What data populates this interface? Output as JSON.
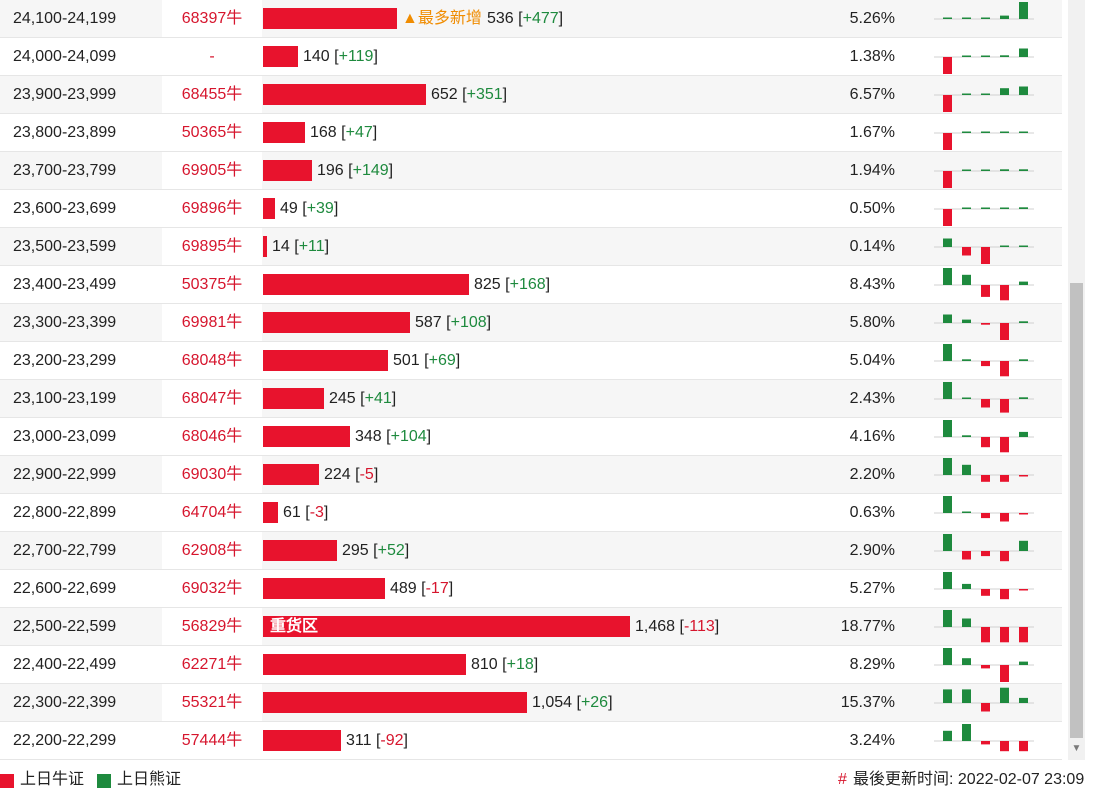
{
  "colors": {
    "bull": "#e8132d",
    "bear": "#1e8a3e",
    "text_red": "#d6152d",
    "highlight": "#f08c00"
  },
  "rows": [
    {
      "range": "24,100-24,199",
      "code": "68397牛",
      "count": "536",
      "delta": "+477",
      "pct": "5.26%",
      "bar_value": 536,
      "tag": "▲最多新增",
      "spark": [
        0,
        0,
        0,
        0.2,
        1
      ]
    },
    {
      "range": "24,000-24,099",
      "code": "-",
      "count": "140",
      "delta": "+119",
      "pct": "1.38%",
      "bar_value": 140,
      "spark": [
        -1,
        0,
        0,
        0.1,
        0.5
      ]
    },
    {
      "range": "23,900-23,999",
      "code": "68455牛",
      "count": "652",
      "delta": "+351",
      "pct": "6.57%",
      "bar_value": 652,
      "spark": [
        -1,
        0,
        0,
        0.4,
        0.5
      ]
    },
    {
      "range": "23,800-23,899",
      "code": "50365牛",
      "count": "168",
      "delta": "+47",
      "pct": "1.67%",
      "bar_value": 168,
      "spark": [
        -1,
        0,
        0,
        0.05,
        0.05
      ]
    },
    {
      "range": "23,700-23,799",
      "code": "69905牛",
      "count": "196",
      "delta": "+149",
      "pct": "1.94%",
      "bar_value": 196,
      "spark": [
        -1,
        0,
        0,
        0.1,
        0.1
      ]
    },
    {
      "range": "23,600-23,699",
      "code": "69896牛",
      "count": "49",
      "delta": "+39",
      "pct": "0.50%",
      "bar_value": 49,
      "spark": [
        -1,
        0,
        0,
        0.05,
        0.1
      ]
    },
    {
      "range": "23,500-23,599",
      "code": "69895牛",
      "count": "14",
      "delta": "+11",
      "pct": "0.14%",
      "bar_value": 14,
      "spark": [
        0.5,
        -0.5,
        -1,
        0.05,
        0.05
      ]
    },
    {
      "range": "23,400-23,499",
      "code": "50375牛",
      "count": "825",
      "delta": "+168",
      "pct": "8.43%",
      "bar_value": 825,
      "spark": [
        1,
        0.6,
        -0.7,
        -0.9,
        0.2
      ]
    },
    {
      "range": "23,300-23,399",
      "code": "69981牛",
      "count": "587",
      "delta": "+108",
      "pct": "5.80%",
      "bar_value": 587,
      "spark": [
        0.5,
        0.2,
        -0.1,
        -1,
        0.1
      ]
    },
    {
      "range": "23,200-23,299",
      "code": "68048牛",
      "count": "501",
      "delta": "+69",
      "pct": "5.04%",
      "bar_value": 501,
      "spark": [
        1,
        0.1,
        -0.3,
        -0.9,
        0.1
      ]
    },
    {
      "range": "23,100-23,199",
      "code": "68047牛",
      "count": "245",
      "delta": "+41",
      "pct": "2.43%",
      "bar_value": 245,
      "spark": [
        1,
        0.05,
        -0.5,
        -0.8,
        0.1
      ]
    },
    {
      "range": "23,000-23,099",
      "code": "68046牛",
      "count": "348",
      "delta": "+104",
      "pct": "4.16%",
      "bar_value": 348,
      "spark": [
        1,
        0.1,
        -0.6,
        -0.9,
        0.3
      ]
    },
    {
      "range": "22,900-22,999",
      "code": "69030牛",
      "count": "224",
      "delta": "-5",
      "pct": "2.20%",
      "bar_value": 224,
      "spark": [
        1,
        0.6,
        -0.4,
        -0.4,
        -0.05
      ]
    },
    {
      "range": "22,800-22,899",
      "code": "64704牛",
      "count": "61",
      "delta": "-3",
      "pct": "0.63%",
      "bar_value": 61,
      "spark": [
        1,
        0.05,
        -0.3,
        -0.5,
        -0.05
      ]
    },
    {
      "range": "22,700-22,799",
      "code": "62908牛",
      "count": "295",
      "delta": "+52",
      "pct": "2.90%",
      "bar_value": 295,
      "spark": [
        1,
        -0.5,
        -0.3,
        -0.6,
        0.6
      ]
    },
    {
      "range": "22,600-22,699",
      "code": "69032牛",
      "count": "489",
      "delta": "-17",
      "pct": "5.27%",
      "bar_value": 489,
      "spark": [
        1,
        0.3,
        -0.4,
        -0.6,
        -0.05
      ]
    },
    {
      "range": "22,500-22,599",
      "code": "56829牛",
      "count": "1,468",
      "delta": "-113",
      "pct": "18.77%",
      "bar_value": 1468,
      "bar_label": "重货区",
      "spark": [
        1,
        0.5,
        -0.9,
        -0.9,
        -0.9
      ]
    },
    {
      "range": "22,400-22,499",
      "code": "62271牛",
      "count": "810",
      "delta": "+18",
      "pct": "8.29%",
      "bar_value": 810,
      "spark": [
        1,
        0.4,
        -0.2,
        -1,
        0.2
      ]
    },
    {
      "range": "22,300-22,399",
      "code": "55321牛",
      "count": "1,054",
      "delta": "+26",
      "pct": "15.37%",
      "bar_value": 1054,
      "spark": [
        0.8,
        0.8,
        -0.5,
        0.9,
        0.3
      ]
    },
    {
      "range": "22,200-22,299",
      "code": "57444牛",
      "count": "311",
      "delta": "-92",
      "pct": "3.24%",
      "bar_value": 311,
      "spark": [
        0.6,
        1,
        -0.2,
        -0.6,
        -0.6
      ]
    }
  ],
  "legend": {
    "bull": "上日牛证",
    "bear": "上日熊证"
  },
  "footer": {
    "symbol": "#",
    "label": "最後更新时间: 2022-02-07 23:09"
  }
}
